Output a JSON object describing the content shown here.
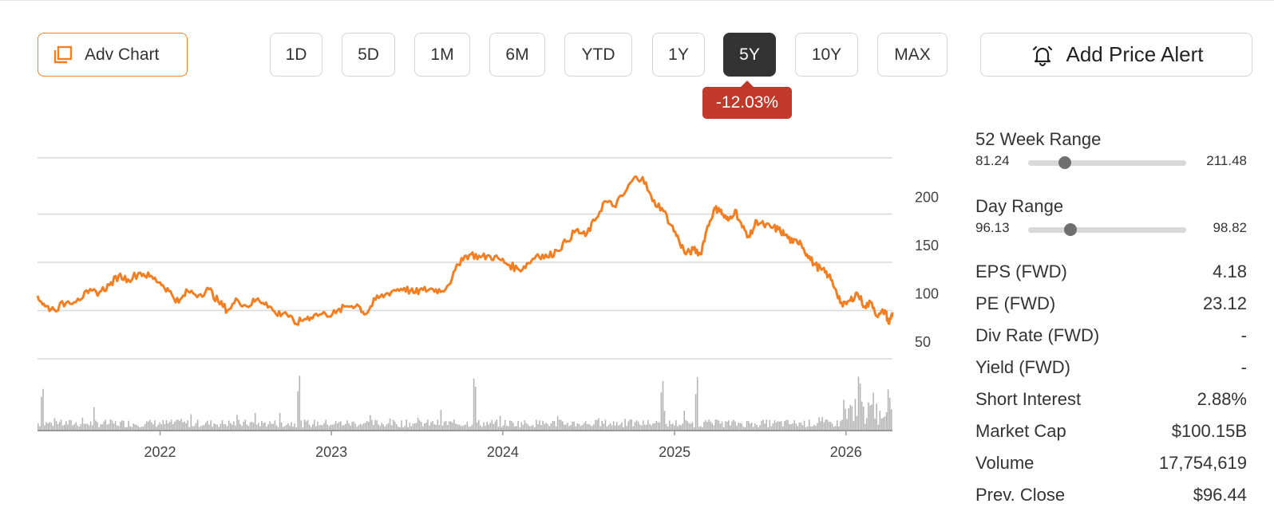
{
  "toolbar": {
    "adv_chart_label": "Adv Chart",
    "periods": [
      "1D",
      "5D",
      "1M",
      "6M",
      "YTD",
      "1Y",
      "5Y",
      "10Y",
      "MAX"
    ],
    "active_period": "5Y",
    "alert_label": "Add Price Alert",
    "change_badge": "-12.03%"
  },
  "colors": {
    "accent": "#f47f22",
    "line": "#f47f22",
    "volume": "#b5b5b5",
    "badge_negative": "#c0392b",
    "active_button": "#333333",
    "grid": "#d9d9d9"
  },
  "chart_data": {
    "type": "line",
    "y_ticks": [
      200,
      150,
      100,
      50
    ],
    "ylim": [
      50,
      250
    ],
    "x_ticks": [
      "2022",
      "2023",
      "2024",
      "2025",
      "2026"
    ],
    "x_tick_dates": [
      "2022-01-01",
      "2023-01-01",
      "2024-01-01",
      "2025-01-01",
      "2026-01-01"
    ],
    "xlim": [
      "2021-04-15",
      "2026-04-10"
    ],
    "grid": true,
    "series": [
      {
        "values_x": [
          "2021-04-15",
          "2021-05-01",
          "2021-05-20",
          "2021-06-15",
          "2021-07-10",
          "2021-08-01",
          "2021-08-25",
          "2021-09-15",
          "2021-10-05",
          "2021-10-25",
          "2021-11-20",
          "2021-12-10",
          "2022-01-01",
          "2022-01-20",
          "2022-02-10",
          "2022-03-01",
          "2022-03-25",
          "2022-04-15",
          "2022-05-05",
          "2022-05-25",
          "2022-06-15",
          "2022-07-05",
          "2022-07-25",
          "2022-08-15",
          "2022-09-05",
          "2022-09-25",
          "2022-10-15",
          "2022-11-05",
          "2022-11-25",
          "2022-12-20",
          "2023-01-10",
          "2023-02-01",
          "2023-02-25",
          "2023-03-15",
          "2023-04-05",
          "2023-04-25",
          "2023-05-15",
          "2023-06-05",
          "2023-06-25",
          "2023-07-15",
          "2023-08-05",
          "2023-08-25",
          "2023-09-15",
          "2023-10-05",
          "2023-10-25",
          "2023-11-15",
          "2023-12-05",
          "2023-12-25",
          "2024-01-15",
          "2024-02-05",
          "2024-02-25",
          "2024-03-15",
          "2024-04-05",
          "2024-04-25",
          "2024-05-15",
          "2024-06-05",
          "2024-06-25",
          "2024-07-15",
          "2024-08-05",
          "2024-08-25",
          "2024-09-15",
          "2024-10-05",
          "2024-10-25",
          "2024-11-15",
          "2024-12-05",
          "2024-12-25",
          "2025-01-10",
          "2025-01-25",
          "2025-02-10",
          "2025-02-25",
          "2025-03-10",
          "2025-03-25",
          "2025-04-05",
          "2025-04-15",
          "2025-04-25",
          "2025-05-10",
          "2025-05-25",
          "2025-06-10",
          "2025-06-25",
          "2025-07-10",
          "2025-07-25",
          "2025-08-10",
          "2025-08-25",
          "2025-09-10",
          "2025-09-25",
          "2025-10-10",
          "2025-10-25",
          "2025-11-10",
          "2025-11-25",
          "2025-12-10",
          "2025-12-25",
          "2026-01-10",
          "2026-01-25",
          "2026-02-10",
          "2026-02-25",
          "2026-03-10",
          "2026-03-25",
          "2026-04-03",
          "2026-04-10"
        ],
        "values_y": [
          107,
          96,
          93,
          100,
          104,
          110,
          111,
          118,
          128,
          124,
          131,
          127,
          121,
          112,
          100,
          112,
          108,
          114,
          101,
          92,
          103,
          96,
          103,
          100,
          88,
          90,
          78,
          83,
          87,
          88,
          89,
          96,
          98,
          88,
          103,
          108,
          113,
          115,
          110,
          113,
          114,
          112,
          125,
          146,
          150,
          147,
          148,
          145,
          139,
          134,
          141,
          150,
          147,
          154,
          163,
          175,
          169,
          185,
          205,
          200,
          212,
          228,
          230,
          205,
          198,
          180,
          165,
          150,
          155,
          150,
          175,
          195,
          198,
          190,
          185,
          196,
          178,
          168,
          185,
          180,
          178,
          176,
          170,
          162,
          164,
          150,
          140,
          134,
          128,
          114,
          96,
          102,
          110,
          96,
          100,
          85,
          92,
          78,
          90
        ]
      }
    ],
    "volume": {
      "note": "relative bar heights, spikes near 2021-04, 2022-12, 2023-12, 2025-01 and 2026-01..04"
    }
  },
  "stats": {
    "week52": {
      "title": "52 Week Range",
      "low": "81.24",
      "high": "211.48",
      "position": 0.23
    },
    "day": {
      "title": "Day Range",
      "low": "96.13",
      "high": "98.82",
      "position": 0.27
    },
    "rows": [
      {
        "key": "EPS (FWD)",
        "value": "4.18"
      },
      {
        "key": "PE (FWD)",
        "value": "23.12"
      },
      {
        "key": "Div Rate (FWD)",
        "value": "-"
      },
      {
        "key": "Yield (FWD)",
        "value": "-"
      },
      {
        "key": "Short Interest",
        "value": "2.88%"
      },
      {
        "key": "Market Cap",
        "value": "$100.15B"
      },
      {
        "key": "Volume",
        "value": "17,754,619"
      },
      {
        "key": "Prev. Close",
        "value": "$96.44"
      }
    ]
  }
}
